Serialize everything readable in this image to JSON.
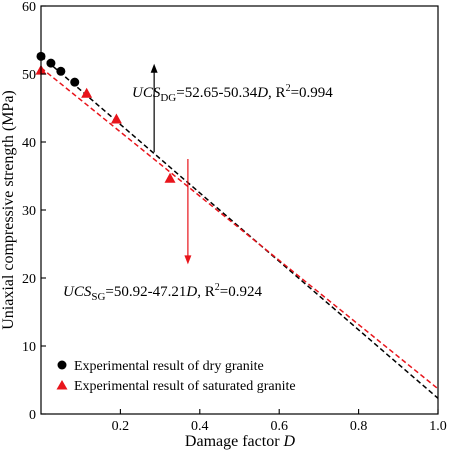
{
  "chart_data": {
    "type": "scatter",
    "xlabel_main": "Damage factor ",
    "xlabel_var": "D",
    "ylabel": "Uniaxial compressive strength (MPa)",
    "xlim": [
      0,
      1.0
    ],
    "ylim": [
      0,
      60
    ],
    "xticks": [
      0.2,
      0.4,
      0.6,
      0.8,
      1.0
    ],
    "xtick_labels": [
      "0.2",
      "0.4",
      "0.6",
      "0.8",
      "1.0"
    ],
    "yticks": [
      0,
      10,
      20,
      30,
      40,
      50,
      60
    ],
    "ytick_labels": [
      "0",
      "10",
      "20",
      "30",
      "40",
      "50",
      "60"
    ],
    "series": [
      {
        "name": "Experimental result of dry granite",
        "marker": "circle",
        "color": "#000000",
        "x": [
          0.0,
          0.025,
          0.05,
          0.085
        ],
        "y": [
          52.6,
          51.6,
          50.4,
          48.8
        ],
        "fit": {
          "intercept": 52.65,
          "slope": -50.34,
          "color": "#000000",
          "dash": "dashed"
        }
      },
      {
        "name": "Experimental result of saturated granite",
        "marker": "triangle",
        "color": "#e8141b",
        "x": [
          0.0,
          0.115,
          0.19,
          0.325
        ],
        "y": [
          50.5,
          47.1,
          43.3,
          34.6
        ],
        "fit": {
          "intercept": 50.92,
          "slope": -47.21,
          "color": "#e8141b",
          "dash": "dashed"
        }
      }
    ],
    "annotations": [
      {
        "id": "dg",
        "parts": [
          "UCS",
          "DG",
          "=52.65-50.34",
          "D",
          ", R",
          "2",
          "=0.994"
        ],
        "arrow_color": "#000000",
        "arrow_from": [
          0.285,
          38.5
        ],
        "arrow_to": [
          0.285,
          51.5
        ]
      },
      {
        "id": "sg",
        "parts": [
          "UCS",
          "SG",
          "=50.92-47.21",
          "D",
          ", R",
          "2",
          "=0.924"
        ],
        "arrow_color": "#e8141b",
        "arrow_from": [
          0.37,
          37.5
        ],
        "arrow_to": [
          0.37,
          22.0
        ]
      }
    ],
    "legend": {
      "placement": "bottom-left",
      "entries": [
        "Experimental result of dry granite",
        "Experimental result of saturated granite"
      ]
    }
  }
}
